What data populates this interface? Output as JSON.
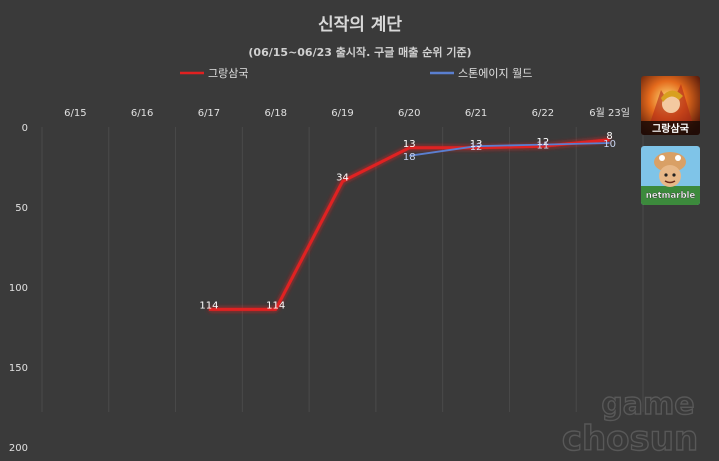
{
  "chart_data": {
    "type": "line",
    "title": "신작의 계단",
    "subtitle": "(06/15~06/23 출시작. 구글 매출 순위 기준)",
    "categories": [
      "6/15",
      "6/16",
      "6/17",
      "6/18",
      "6/19",
      "6/20",
      "6/21",
      "6/22",
      "6월 23일"
    ],
    "y_ticks": [
      "0",
      "50",
      "100",
      "150",
      "200"
    ],
    "ylim": [
      0,
      200
    ],
    "y_inverted": true,
    "grid": true,
    "legend_position": "top",
    "series": [
      {
        "name": "그랑삼국",
        "color": "#e02020",
        "values": [
          null,
          null,
          114,
          114,
          34,
          13,
          13,
          12,
          8
        ],
        "labels": [
          "",
          "",
          "114",
          "114",
          "34",
          "13",
          "13",
          "12",
          "8"
        ]
      },
      {
        "name": "스톤에이지 월드",
        "color": "#5a7fd0",
        "values": [
          null,
          null,
          null,
          null,
          null,
          18,
          12,
          11,
          10
        ],
        "labels": [
          "",
          "",
          "",
          "",
          "",
          "18",
          "12",
          "11",
          "10"
        ]
      }
    ]
  },
  "logos": [
    {
      "name": "그랑삼국",
      "text": "그랑삼국"
    },
    {
      "name": "스톤에이지 월드",
      "text": "netmarble"
    }
  ],
  "watermark": {
    "line1": "game",
    "line2": "chosun"
  }
}
